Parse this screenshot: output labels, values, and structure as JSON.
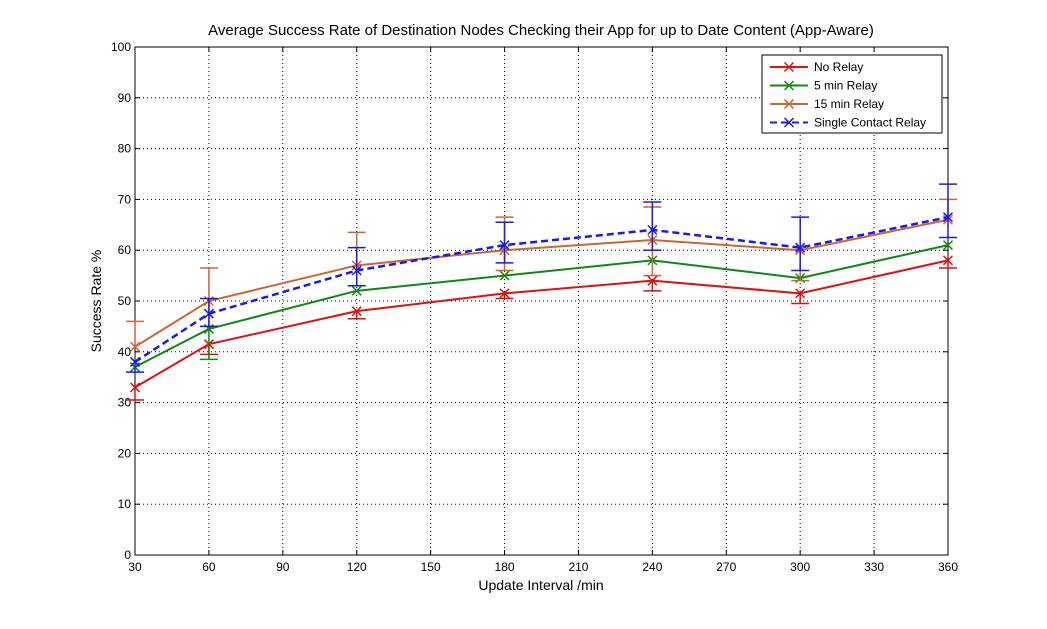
{
  "chart_data": {
    "type": "line",
    "title": "Average Success Rate of Destination Nodes Checking their App for up to Date Content (App-Aware)",
    "xlabel": "Update Interval /min",
    "ylabel": "Success Rate %",
    "xlim": [
      30,
      360
    ],
    "ylim": [
      0,
      100
    ],
    "xticks": [
      30,
      60,
      90,
      120,
      150,
      180,
      210,
      240,
      270,
      300,
      330,
      360
    ],
    "yticks": [
      0,
      10,
      20,
      30,
      40,
      50,
      60,
      70,
      80,
      90,
      100
    ],
    "grid": true,
    "legend_position": "top-right",
    "x": [
      30,
      60,
      120,
      180,
      240,
      300,
      360
    ],
    "series": [
      {
        "name": "No Relay",
        "color": "#dd1111",
        "dashed": false,
        "values": [
          33,
          41.5,
          48,
          51.5,
          54,
          51.5,
          58
        ],
        "err_low": [
          2.5,
          2,
          1.5,
          1,
          2,
          2,
          1.5
        ],
        "err_high": [
          0,
          0,
          0,
          0,
          0,
          0,
          0
        ]
      },
      {
        "name": "5 min Relay",
        "color": "#118811",
        "dashed": false,
        "values": [
          37,
          44.5,
          52,
          55,
          58,
          54.5,
          61
        ],
        "err_low": [
          0,
          6,
          0,
          0,
          0,
          0,
          0
        ],
        "err_high": [
          0,
          0,
          0,
          0,
          0,
          0,
          0
        ]
      },
      {
        "name": "15 min Relay",
        "color": "#cc6633",
        "dashed": false,
        "values": [
          41,
          50,
          57,
          60,
          62,
          60,
          66
        ],
        "err_low": [
          0,
          5,
          4,
          4,
          7,
          6,
          0
        ],
        "err_high": [
          5,
          6.5,
          6.5,
          6.5,
          6.5,
          0,
          4
        ]
      },
      {
        "name": "Single Contact Relay",
        "color": "#1a1aee",
        "dashed": true,
        "values": [
          38,
          47.5,
          56,
          61,
          64,
          60.5,
          66.5
        ],
        "err_low": [
          2,
          2.5,
          3,
          3.5,
          4,
          4.5,
          4
        ],
        "err_high": [
          0,
          3,
          4.5,
          4.5,
          5.5,
          6,
          6.5
        ]
      }
    ]
  }
}
